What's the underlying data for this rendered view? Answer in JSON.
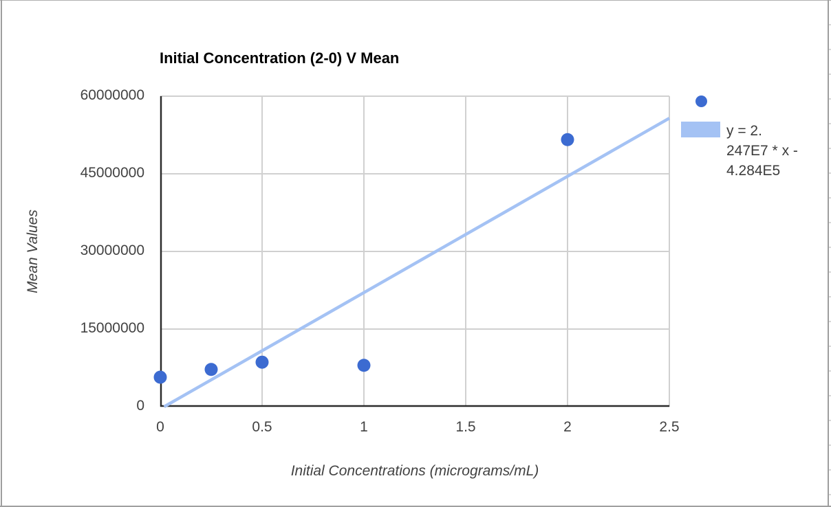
{
  "chart": {
    "title": "Initial Concentration (2-0) V Mean",
    "x_axis_title": "Initial Concentrations (micrograms/mL)",
    "y_axis_title": "Mean Values"
  },
  "legend": {
    "series_marker": "blue-dot",
    "trendline_swatch": "light-blue-rect",
    "equation": "y = 2.247E7 * x - 4.284E5",
    "equation_lines": [
      "y = 2.",
      "247E7 * x -",
      "4.284E5"
    ]
  },
  "colors": {
    "point": "#3c6bd1",
    "trendline": "#a4c2f4",
    "gridline": "#d0d0d0",
    "axis_line": "#2b2b2b"
  },
  "chart_data": {
    "type": "scatter",
    "title": "Initial Concentration (2-0) V Mean",
    "xlabel": "Initial Concentrations (micrograms/mL)",
    "ylabel": "Mean Values",
    "xlim": [
      0,
      2.5
    ],
    "ylim": [
      0,
      60000000
    ],
    "x_ticks": [
      0,
      0.5,
      1,
      1.5,
      2,
      2.5
    ],
    "x_tick_labels": [
      "0",
      "0.5",
      "1",
      "1.5",
      "2",
      "2.5"
    ],
    "y_ticks": [
      0,
      15000000,
      30000000,
      45000000,
      60000000
    ],
    "y_tick_labels": [
      "0",
      "15000000",
      "30000000",
      "45000000",
      "60000000"
    ],
    "grid": true,
    "legend_position": "right",
    "points": [
      {
        "x": 0,
        "y": 5700000
      },
      {
        "x": 0.25,
        "y": 7200000
      },
      {
        "x": 0.5,
        "y": 8600000
      },
      {
        "x": 1,
        "y": 8000000
      },
      {
        "x": 2,
        "y": 51600000
      }
    ],
    "trendline": {
      "slope": 22470000,
      "intercept": -428400,
      "label": "y = 2.247E7 * x - 4.284E5"
    }
  }
}
